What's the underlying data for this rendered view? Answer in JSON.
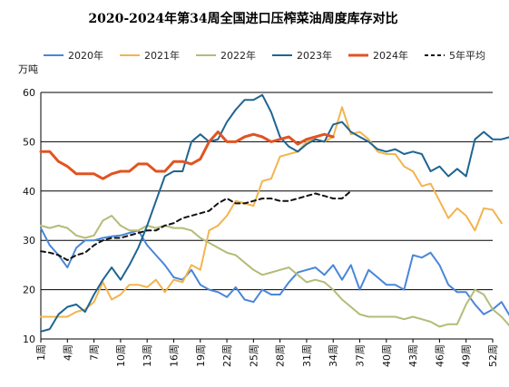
{
  "chart_data": {
    "type": "line",
    "title": "2020-2024年第34周全国进口压榨菜油周度库存对比",
    "ylabel": "万吨",
    "ylim": [
      10,
      60
    ],
    "yticks": [
      10,
      20,
      30,
      40,
      50,
      60
    ],
    "xlim": [
      1,
      52
    ],
    "xticks": [
      "1周",
      "4周",
      "7周",
      "10周",
      "13周",
      "16周",
      "19周",
      "22周",
      "25周",
      "28周",
      "31周",
      "34周",
      "37周",
      "40周",
      "43周",
      "46周",
      "49周",
      "52周"
    ],
    "grid": "horizontal",
    "legend_position": "top",
    "series": [
      {
        "name": "2020年",
        "color": "#4a86d8",
        "dash": false,
        "width": 2,
        "values": [
          32.5,
          29,
          27,
          24.5,
          28.5,
          30,
          30,
          30.5,
          30.8,
          31,
          31.5,
          32,
          29,
          27,
          25,
          22.5,
          22,
          24,
          21,
          20,
          19.5,
          18.5,
          20.5,
          18,
          17.5,
          20,
          19,
          19,
          21.5,
          23.5,
          24,
          24.5,
          23,
          25,
          22,
          25,
          20,
          24,
          22.5,
          21,
          21,
          20,
          27,
          26.5,
          27.5,
          25,
          21,
          19.5,
          19.5,
          17,
          15,
          16,
          17.5,
          14.5
        ]
      },
      {
        "name": "2021年",
        "color": "#f3b44e",
        "dash": false,
        "width": 2,
        "values": [
          14.5,
          14.5,
          14.5,
          14.5,
          15.5,
          16,
          17.5,
          21.5,
          18,
          19,
          21,
          21,
          20.5,
          22,
          19.5,
          22,
          21.5,
          25,
          24,
          32,
          33,
          35,
          38,
          37.5,
          37,
          42,
          42.5,
          47,
          47.5,
          48,
          50,
          50.5,
          50,
          51,
          57,
          51.5,
          52,
          50.5,
          48,
          47.5,
          47.5,
          45,
          44,
          41,
          41.5,
          38,
          34.5,
          36.5,
          35,
          32,
          36.5,
          36.2,
          33.5
        ]
      },
      {
        "name": "2022年",
        "color": "#b5bb78",
        "dash": false,
        "width": 2,
        "values": [
          33,
          32.5,
          33,
          32.5,
          31,
          30.5,
          31,
          34,
          35,
          33,
          32,
          32,
          33,
          32.5,
          33,
          32.5,
          32.5,
          32,
          30.5,
          29.5,
          28.5,
          27.5,
          27,
          25.5,
          24,
          23,
          23.5,
          24,
          24.5,
          23,
          21.5,
          22,
          21.5,
          20,
          18,
          16.5,
          15,
          14.5,
          14.5,
          14.5,
          14.5,
          14,
          14.5,
          14,
          13.5,
          12.5,
          13,
          13,
          17,
          20,
          19,
          16,
          14.5,
          12.5
        ]
      },
      {
        "name": "2023年",
        "color": "#1e6591",
        "dash": false,
        "width": 2,
        "values": [
          11.5,
          12,
          15,
          16.5,
          17,
          15.5,
          19,
          22,
          24.5,
          22,
          25,
          28.5,
          33,
          38,
          43,
          44,
          44,
          50,
          51.5,
          50,
          50.5,
          54,
          56.5,
          58.5,
          58.5,
          59.5,
          56,
          51,
          49,
          48,
          49.5,
          50.5,
          50,
          53.5,
          54,
          52,
          51,
          50,
          48.5,
          48,
          48.5,
          47.5,
          48,
          47.5,
          44,
          45,
          43,
          44.5,
          43,
          50.5,
          52,
          50.5,
          50.5,
          51,
          49
        ]
      },
      {
        "name": "2024年",
        "color": "#e05423",
        "dash": false,
        "width": 3,
        "values": [
          48,
          48,
          46,
          45,
          43.5,
          43.5,
          43.5,
          42.5,
          43.5,
          44,
          44,
          45.5,
          45.5,
          44,
          44,
          46,
          46,
          45.5,
          46.5,
          50,
          52,
          50,
          50,
          51,
          51.5,
          51,
          50,
          50.5,
          51,
          49.5,
          50.5,
          51,
          51.5,
          51
        ]
      },
      {
        "name": "5年平均",
        "color": "#111111",
        "dash": true,
        "width": 2,
        "values": [
          27.8,
          27.5,
          27,
          26,
          27,
          27.5,
          29,
          30,
          30.5,
          30.5,
          31,
          31.5,
          32,
          32,
          33,
          33.5,
          34.5,
          35,
          35.5,
          36,
          37.5,
          38.5,
          37.5,
          37.5,
          38,
          38.5,
          38.5,
          38,
          38,
          38.5,
          39,
          39.5,
          39,
          38.5,
          38.5,
          40
        ]
      }
    ]
  }
}
